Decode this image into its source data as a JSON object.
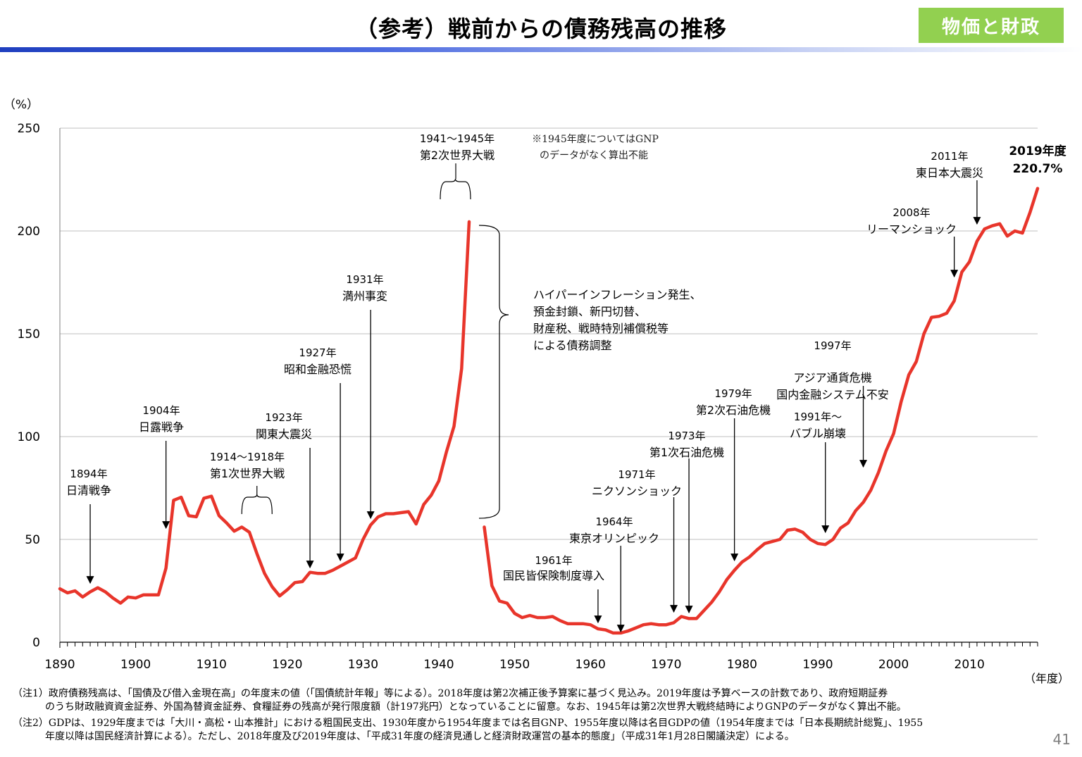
{
  "header": {
    "title": "（参考）戦前からの債務残高の推移",
    "badge": "物価と財政"
  },
  "colors": {
    "line": "#e8352b",
    "badge": "#92d050",
    "rule": "#1f3fbf",
    "grid": "#bfbfbf"
  },
  "chart_data": {
    "type": "line",
    "ylabel": "（%）",
    "xlabel": "（年度）",
    "xlim": [
      1890,
      2019
    ],
    "ylim": [
      0,
      250
    ],
    "y_ticks": [
      0,
      50,
      100,
      150,
      200,
      250
    ],
    "x_ticks": [
      1890,
      1900,
      1910,
      1920,
      1930,
      1940,
      1950,
      1960,
      1970,
      1980,
      1990,
      2000,
      2010
    ],
    "grid": "horizontal",
    "series": [
      {
        "color": "#e8352b",
        "segments": [
          {
            "x": [
              1890,
              1891,
              1892,
              1893,
              1894,
              1895,
              1896,
              1897,
              1898,
              1899,
              1900,
              1901,
              1902,
              1903,
              1904,
              1905,
              1906,
              1907,
              1908,
              1909,
              1910,
              1911,
              1912,
              1913,
              1914,
              1915,
              1916,
              1917,
              1918,
              1919,
              1920,
              1921,
              1922,
              1923,
              1924,
              1925,
              1926,
              1927,
              1928,
              1929,
              1930,
              1931,
              1932,
              1933,
              1934,
              1935,
              1936,
              1937,
              1938,
              1939,
              1940,
              1941,
              1942,
              1943,
              1944
            ],
            "y": [
              26,
              24,
              25,
              22,
              24.5,
              26.5,
              24.5,
              21.5,
              19,
              22,
              21.5,
              23,
              23,
              23,
              36,
              69,
              70.5,
              61.5,
              61,
              70,
              71,
              61.5,
              58,
              54,
              56,
              53.5,
              43,
              33.5,
              27,
              22.5,
              25.5,
              29,
              29.5,
              34,
              33.5,
              33.5,
              35,
              37,
              39,
              41,
              50,
              57,
              61,
              62.5,
              62.5,
              63,
              63.5,
              57.5,
              67,
              71.5,
              78.5,
              92.5,
              105,
              133,
              204.5
            ]
          },
          {
            "x": [
              1946,
              1947,
              1948,
              1949,
              1950,
              1951,
              1952,
              1953,
              1954,
              1955,
              1956,
              1957,
              1958,
              1959,
              1960,
              1961,
              1962,
              1963,
              1964,
              1965,
              1966,
              1967,
              1968,
              1969,
              1970,
              1971,
              1972,
              1973,
              1974,
              1975,
              1976,
              1977,
              1978,
              1979,
              1980,
              1981,
              1982,
              1983,
              1984,
              1985,
              1986,
              1987,
              1988,
              1989,
              1990,
              1991,
              1992,
              1993,
              1994,
              1995,
              1996,
              1997,
              1998,
              1999,
              2000,
              2001,
              2002,
              2003,
              2004,
              2005,
              2006,
              2007,
              2008,
              2009,
              2010,
              2011,
              2012,
              2013,
              2014,
              2015,
              2016,
              2017,
              2018,
              2019
            ],
            "y": [
              56,
              27.5,
              20,
              19,
              14,
              12,
              13,
              12,
              12,
              12.5,
              10.5,
              9,
              9,
              9,
              8.5,
              6.5,
              6,
              4.5,
              4.5,
              5.5,
              7,
              8.5,
              9,
              8.5,
              8.5,
              9.5,
              12.5,
              11.5,
              11.5,
              15.5,
              19.5,
              24.5,
              30.5,
              35,
              39,
              41.5,
              45,
              48,
              49,
              50,
              54.5,
              55,
              53.5,
              50,
              48,
              47.5,
              50,
              55.5,
              58,
              64,
              68,
              74,
              82.5,
              93,
              101.5,
              117,
              130,
              136.5,
              150,
              158,
              158.5,
              160,
              166,
              180,
              185,
              195,
              201,
              202.5,
              203.5,
              197.5,
              200,
              199,
              209,
              220.7
            ]
          }
        ]
      }
    ],
    "annotations": [
      {
        "id": "1894",
        "year": "1894年",
        "label": "日清戦争",
        "x": 1894
      },
      {
        "id": "1904",
        "year": "1904年",
        "label": "日露戦争",
        "x": 1904
      },
      {
        "id": "1914",
        "year": "1914～1918年",
        "label": "第1次世界大戦",
        "x_from": 1914,
        "x_to": 1918
      },
      {
        "id": "1923",
        "year": "1923年",
        "label": "関東大震災",
        "x": 1923
      },
      {
        "id": "1927",
        "year": "1927年",
        "label": "昭和金融恐慌",
        "x": 1927
      },
      {
        "id": "1931",
        "year": "1931年",
        "label": "満州事変",
        "x": 1931
      },
      {
        "id": "1941",
        "year": "1941～1945年",
        "label": "第2次世界大戦",
        "x_from": 1941,
        "x_to": 1945
      },
      {
        "id": "1961",
        "year": "1961年",
        "label": "国民皆保険制度導入",
        "x": 1961
      },
      {
        "id": "1964",
        "year": "1964年",
        "label": "東京オリンピック",
        "x": 1964
      },
      {
        "id": "1971",
        "year": "1971年",
        "label": "ニクソンショック",
        "x": 1971
      },
      {
        "id": "1973",
        "year": "1973年",
        "label": "第1次石油危機",
        "x": 1973
      },
      {
        "id": "1979",
        "year": "1979年",
        "label": "第2次石油危機",
        "x": 1979
      },
      {
        "id": "1991",
        "year": "1991年～",
        "label": "バブル崩壊",
        "x": 1991
      },
      {
        "id": "1997",
        "year": "1997年",
        "label": "アジア通貨危機",
        "label2": "国内金融システム不安",
        "x": 1997
      },
      {
        "id": "2008",
        "year": "2008年",
        "label": "リーマンショック",
        "x": 2008
      },
      {
        "id": "2011",
        "year": "2011年",
        "label": "東日本大震災",
        "x": 2011
      }
    ],
    "gnp_note": [
      "※1945年度についてはGNP",
      "のデータがなく算出不能"
    ],
    "postwar_note": [
      "ハイパーインフレーション発生、",
      "預金封鎖、新円切替、",
      "財産税、戦時特別補償税等",
      "による債務調整"
    ],
    "end_label": [
      "2019年度",
      "220.7%"
    ]
  },
  "notes": {
    "n1_tag": "（注1）",
    "n1_l1": "政府債務残高は、「国債及び借入金現在高」の年度末の値（「国債統計年報」等による）。2018年度は第2次補正後予算案に基づく見込み。2019年度は予算ベースの計数であり、政府短期証券",
    "n1_l2": "のうち財政融資資金証券、外国為替資金証券、食糧証券の残高が発行限度額（計197兆円）となっていることに留意。なお、1945年は第2次世界大戦終結時によりGNPのデータがなく算出不能。",
    "n2_tag": "（注2）",
    "n2_l1": "GDPは、1929年度までは「大川・高松・山本推計」における粗国民支出、1930年度から1954年度までは名目GNP、1955年度以降は名目GDPの値（1954年度までは「日本長期統計総覧」、1955",
    "n2_l2": "年度以降は国民経済計算による）。ただし、2018年度及び2019年度は、「平成31年度の経済見通しと経済財政運営の基本的態度」（平成31年1月28日閣議決定）による。"
  },
  "page_number": "41"
}
